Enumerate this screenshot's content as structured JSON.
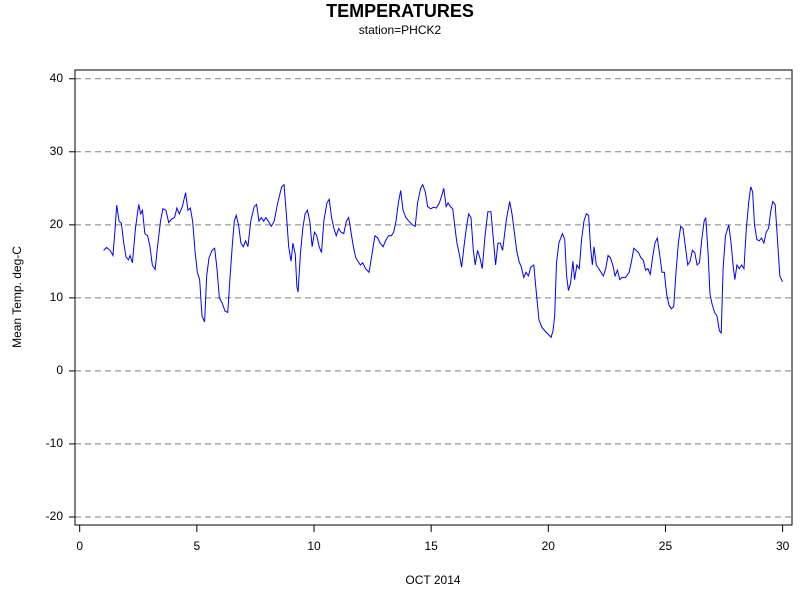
{
  "chart_data": {
    "type": "line",
    "title": "TEMPERATURES",
    "subtitle": "station=PHCK2",
    "xlabel": "OCT 2014",
    "ylabel": "Mean Temp. deg-C",
    "color": "#0000ff",
    "xlim": [
      -0.2,
      30.4
    ],
    "xticks": [
      0,
      5,
      10,
      15,
      20,
      25,
      30
    ],
    "ylim": [
      -21.1,
      41.2
    ],
    "yticks": [
      -20,
      -10,
      0,
      10,
      20,
      30,
      40
    ],
    "grid": true,
    "x": [
      1.02,
      1.15,
      1.3,
      1.42,
      1.5,
      1.58,
      1.68,
      1.78,
      1.88,
      1.98,
      2.08,
      2.15,
      2.25,
      2.38,
      2.52,
      2.6,
      2.68,
      2.78,
      2.9,
      3.0,
      3.1,
      3.22,
      3.32,
      3.45,
      3.55,
      3.68,
      3.8,
      3.92,
      4.05,
      4.15,
      4.25,
      4.38,
      4.52,
      4.62,
      4.72,
      4.82,
      4.92,
      5.02,
      5.12,
      5.22,
      5.33,
      5.42,
      5.52,
      5.65,
      5.76,
      5.86,
      5.96,
      6.08,
      6.2,
      6.32,
      6.42,
      6.52,
      6.6,
      6.68,
      6.78,
      6.88,
      6.98,
      7.08,
      7.18,
      7.3,
      7.45,
      7.55,
      7.65,
      7.75,
      7.85,
      7.95,
      8.05,
      8.18,
      8.3,
      8.45,
      8.62,
      8.72,
      8.82,
      8.92,
      9.02,
      9.1,
      9.2,
      9.27,
      9.32,
      9.42,
      9.52,
      9.62,
      9.72,
      9.82,
      9.92,
      10.02,
      10.12,
      10.22,
      10.32,
      10.42,
      10.55,
      10.65,
      10.75,
      10.85,
      10.95,
      11.05,
      11.15,
      11.27,
      11.38,
      11.48,
      11.58,
      11.68,
      11.78,
      11.88,
      11.98,
      12.08,
      12.2,
      12.35,
      12.45,
      12.6,
      12.72,
      12.82,
      12.95,
      13.05,
      13.18,
      13.3,
      13.4,
      13.5,
      13.6,
      13.7,
      13.8,
      13.92,
      14.05,
      14.2,
      14.32,
      14.42,
      14.55,
      14.64,
      14.75,
      14.85,
      14.98,
      15.1,
      15.22,
      15.35,
      15.45,
      15.54,
      15.64,
      15.72,
      15.82,
      15.92,
      16.02,
      16.1,
      16.2,
      16.3,
      16.4,
      16.5,
      16.6,
      16.7,
      16.8,
      16.88,
      16.98,
      17.08,
      17.18,
      17.3,
      17.42,
      17.55,
      17.65,
      17.75,
      17.85,
      17.95,
      18.05,
      18.2,
      18.35,
      18.45,
      18.55,
      18.65,
      18.75,
      18.85,
      18.95,
      19.05,
      19.15,
      19.25,
      19.38,
      19.48,
      19.6,
      19.72,
      19.85,
      20.0,
      20.12,
      20.2,
      20.27,
      20.35,
      20.45,
      20.6,
      20.7,
      20.78,
      20.86,
      20.95,
      21.05,
      21.12,
      21.22,
      21.32,
      21.42,
      21.52,
      21.62,
      21.72,
      21.8,
      21.88,
      21.95,
      22.05,
      22.15,
      22.25,
      22.35,
      22.45,
      22.55,
      22.65,
      22.75,
      22.85,
      22.95,
      23.05,
      23.15,
      23.3,
      23.45,
      23.55,
      23.65,
      23.75,
      23.85,
      23.95,
      24.05,
      24.15,
      24.25,
      24.35,
      24.45,
      24.55,
      24.65,
      24.75,
      24.85,
      24.95,
      25.05,
      25.15,
      25.25,
      25.35,
      25.45,
      25.55,
      25.65,
      25.75,
      25.85,
      25.95,
      26.05,
      26.15,
      26.25,
      26.35,
      26.45,
      26.55,
      26.65,
      26.72,
      26.82,
      26.9,
      27.0,
      27.1,
      27.2,
      27.3,
      27.38,
      27.46,
      27.56,
      27.7,
      27.8,
      27.9,
      27.96,
      28.05,
      28.15,
      28.25,
      28.35,
      28.45,
      28.55,
      28.64,
      28.72,
      28.8,
      28.9,
      29.0,
      29.1,
      29.2,
      29.3,
      29.4,
      29.5,
      29.58,
      29.68,
      29.78,
      29.88,
      29.95,
      30.0
    ],
    "values": [
      16.5,
      16.9,
      16.5,
      15.8,
      19,
      22.7,
      20.5,
      20.2,
      17.5,
      15.6,
      15.2,
      15.8,
      14.8,
      19.5,
      22.8,
      21.5,
      22,
      18.8,
      18.5,
      17,
      14.5,
      13.9,
      17,
      20.5,
      22.2,
      22,
      20.3,
      20.8,
      21,
      22.3,
      21.5,
      22.5,
      24.4,
      22,
      22.3,
      20.5,
      16.5,
      13.5,
      12.5,
      7.5,
      6.7,
      13,
      15.5,
      16.5,
      16.8,
      14,
      10,
      9.3,
      8.2,
      8,
      13,
      17.5,
      20.5,
      21.3,
      20,
      17.5,
      17,
      17.8,
      17,
      20.5,
      22.5,
      22.8,
      20.5,
      21,
      20.5,
      21,
      20.5,
      19.8,
      20.5,
      23,
      25.2,
      25.5,
      21.5,
      17,
      15,
      17.5,
      16,
      11.5,
      10.8,
      16,
      19.5,
      21.5,
      22,
      20.5,
      17,
      19,
      18.5,
      17,
      16.2,
      20.5,
      23,
      23.5,
      21,
      19.5,
      18.5,
      19.5,
      19,
      18.8,
      20.5,
      21,
      19,
      17,
      15.5,
      15,
      14.5,
      14.8,
      14,
      13.5,
      15.5,
      18.5,
      18.2,
      17.5,
      17,
      17.8,
      18.5,
      18.5,
      19,
      20.5,
      23,
      24.7,
      22,
      21,
      20.5,
      20,
      19.8,
      23,
      25,
      25.5,
      24.5,
      22.5,
      22.2,
      22.4,
      22.3,
      23,
      24,
      25,
      22.5,
      23,
      22.5,
      22.2,
      19.5,
      17.5,
      16,
      14.2,
      17,
      19.5,
      21.5,
      21,
      16.5,
      14.5,
      16.5,
      15.5,
      14,
      18.5,
      21.8,
      21.8,
      18.2,
      14.5,
      17.5,
      17.5,
      16.5,
      20.5,
      23.2,
      21.5,
      19,
      16.5,
      15,
      14.2,
      12.8,
      13.5,
      13,
      14.2,
      14.5,
      11,
      7,
      6,
      5.5,
      5,
      4.6,
      5.5,
      7.5,
      14.8,
      17.5,
      18.8,
      18,
      13,
      11,
      12,
      15,
      12.5,
      14.5,
      14,
      18,
      20.5,
      21.5,
      21.3,
      17,
      14.5,
      17,
      14.5,
      14,
      13.5,
      13,
      14,
      15.8,
      15.5,
      14.5,
      13,
      13.8,
      12.5,
      12.8,
      12.8,
      13.5,
      15,
      16.8,
      16.5,
      16.2,
      15.5,
      15.2,
      13.8,
      14,
      13.2,
      15.5,
      17.5,
      18.2,
      16,
      13.5,
      13.5,
      10.5,
      9,
      8.5,
      8.8,
      13.5,
      17.5,
      19.8,
      19.5,
      17,
      14.5,
      15,
      16.5,
      16.2,
      14.5,
      14.8,
      18,
      20.5,
      21,
      16,
      10.5,
      9,
      8,
      7.5,
      5.5,
      5.2,
      14,
      18.5,
      20,
      17.5,
      14,
      12.5,
      14.5,
      14,
      14.5,
      14,
      19.5,
      23,
      25.2,
      24.5,
      20,
      18,
      17.8,
      18.2,
      17.5,
      19,
      19.5,
      22,
      23.2,
      22.8,
      18,
      13,
      12.5,
      12.2
    ]
  }
}
